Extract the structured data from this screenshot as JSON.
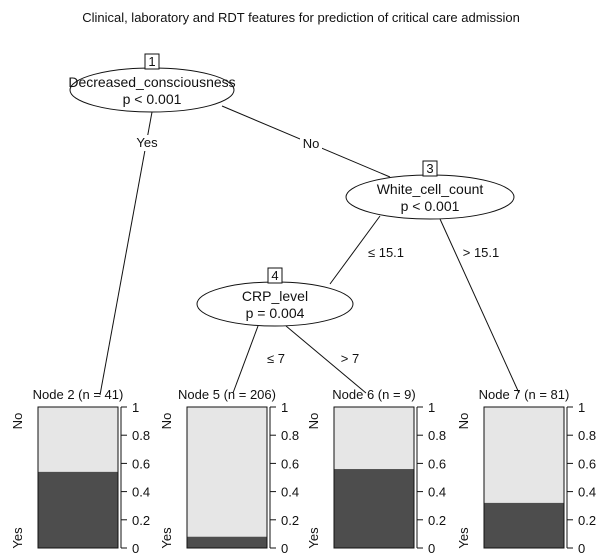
{
  "title": "Clinical, laboratory and RDT features for prediction of critical care admission",
  "inner_nodes": [
    {
      "id": "1",
      "variable": "Decreased_consciousness",
      "p": "p < 0.001"
    },
    {
      "id": "3",
      "variable": "White_cell_count",
      "p": "p < 0.001"
    },
    {
      "id": "4",
      "variable": "CRP_level",
      "p": "p = 0.004"
    }
  ],
  "edges": [
    {
      "from": "1",
      "to": "2",
      "label": "Yes"
    },
    {
      "from": "1",
      "to": "3",
      "label": "No"
    },
    {
      "from": "3",
      "to": "4",
      "label": "≤ 15.1"
    },
    {
      "from": "3",
      "to": "7",
      "label": "> 15.1"
    },
    {
      "from": "4",
      "to": "5",
      "label": "≤ 7"
    },
    {
      "from": "4",
      "to": "6",
      "label": "> 7"
    }
  ],
  "terminal_nodes": [
    {
      "id": "2",
      "label": "Node 2 (n = 41)",
      "yes_fraction": 0.54
    },
    {
      "id": "5",
      "label": "Node 5 (n = 206)",
      "yes_fraction": 0.08
    },
    {
      "id": "6",
      "label": "Node 6 (n = 9)",
      "yes_fraction": 0.56
    },
    {
      "id": "7",
      "label": "Node 7 (n = 81)",
      "yes_fraction": 0.32
    }
  ],
  "bar_axis": {
    "top_category": "No",
    "bottom_category": "Yes",
    "ticks": [
      "0",
      "0.2",
      "0.4",
      "0.6",
      "0.8",
      "1"
    ]
  },
  "colors": {
    "yes_fill": "#4d4d4d",
    "no_fill": "#e6e6e6",
    "stroke": "#111111"
  }
}
